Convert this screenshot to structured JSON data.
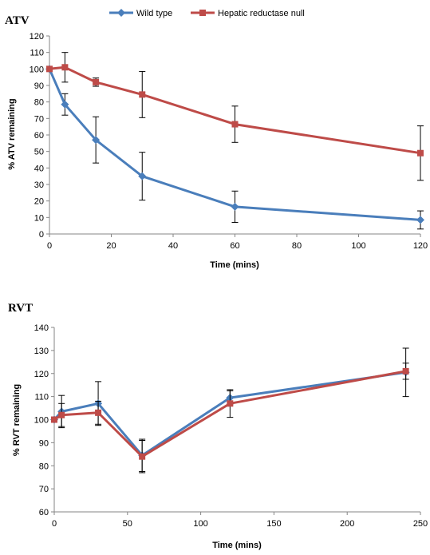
{
  "legend": {
    "items": [
      {
        "label": "Wild type",
        "color": "#4A7EBB",
        "marker": "diamond"
      },
      {
        "label": "Hepatic reductase null",
        "color": "#BE4B48",
        "marker": "square"
      }
    ],
    "placement": "top"
  },
  "chart_data": [
    {
      "type": "line",
      "title": "ATV",
      "xlabel": "Time (mins)",
      "ylabel": "% ATV remaining",
      "xlim": [
        0,
        120
      ],
      "ylim": [
        0,
        120
      ],
      "xticks": [
        0,
        20,
        40,
        60,
        80,
        100,
        120
      ],
      "yticks": [
        0,
        10,
        20,
        30,
        40,
        50,
        60,
        70,
        80,
        90,
        100,
        110,
        120
      ],
      "grid": false,
      "error_bar_color": "#000000",
      "series": [
        {
          "name": "Wild type",
          "color": "#4A7EBB",
          "marker": "diamond",
          "x": [
            0,
            5,
            15,
            30,
            60,
            120
          ],
          "y": [
            100,
            78.5,
            57,
            35,
            16.5,
            8.5
          ],
          "err": [
            0,
            6.5,
            14,
            14.5,
            9.5,
            5.5
          ]
        },
        {
          "name": "Hepatic reductase null",
          "color": "#BE4B48",
          "marker": "square",
          "x": [
            0,
            5,
            15,
            30,
            60,
            120
          ],
          "y": [
            100,
            101,
            92,
            84.5,
            66.5,
            49
          ],
          "err": [
            0,
            9,
            2.5,
            14,
            11,
            16.5
          ]
        }
      ]
    },
    {
      "type": "line",
      "title": "RVT",
      "xlabel": "Time (mins)",
      "ylabel": "% RVT remaining",
      "xlim": [
        0,
        250
      ],
      "ylim": [
        60,
        140
      ],
      "xticks": [
        0,
        50,
        100,
        150,
        200,
        250
      ],
      "yticks": [
        60,
        70,
        80,
        90,
        100,
        110,
        120,
        130,
        140
      ],
      "grid": false,
      "error_bar_color": "#000000",
      "series": [
        {
          "name": "Wild type",
          "color": "#4A7EBB",
          "marker": "diamond",
          "x": [
            0,
            5,
            30,
            60,
            120,
            240
          ],
          "y": [
            100,
            103.5,
            107,
            84.5,
            109.5,
            120.5
          ],
          "err": [
            0,
            7,
            9.5,
            7,
            3,
            10.5
          ]
        },
        {
          "name": "Hepatic reductase null",
          "color": "#BE4B48",
          "marker": "square",
          "x": [
            0,
            5,
            30,
            60,
            120,
            240
          ],
          "y": [
            100,
            102,
            103,
            84,
            107,
            121
          ],
          "err": [
            0,
            5,
            5,
            7,
            6,
            3.5
          ]
        }
      ]
    }
  ]
}
